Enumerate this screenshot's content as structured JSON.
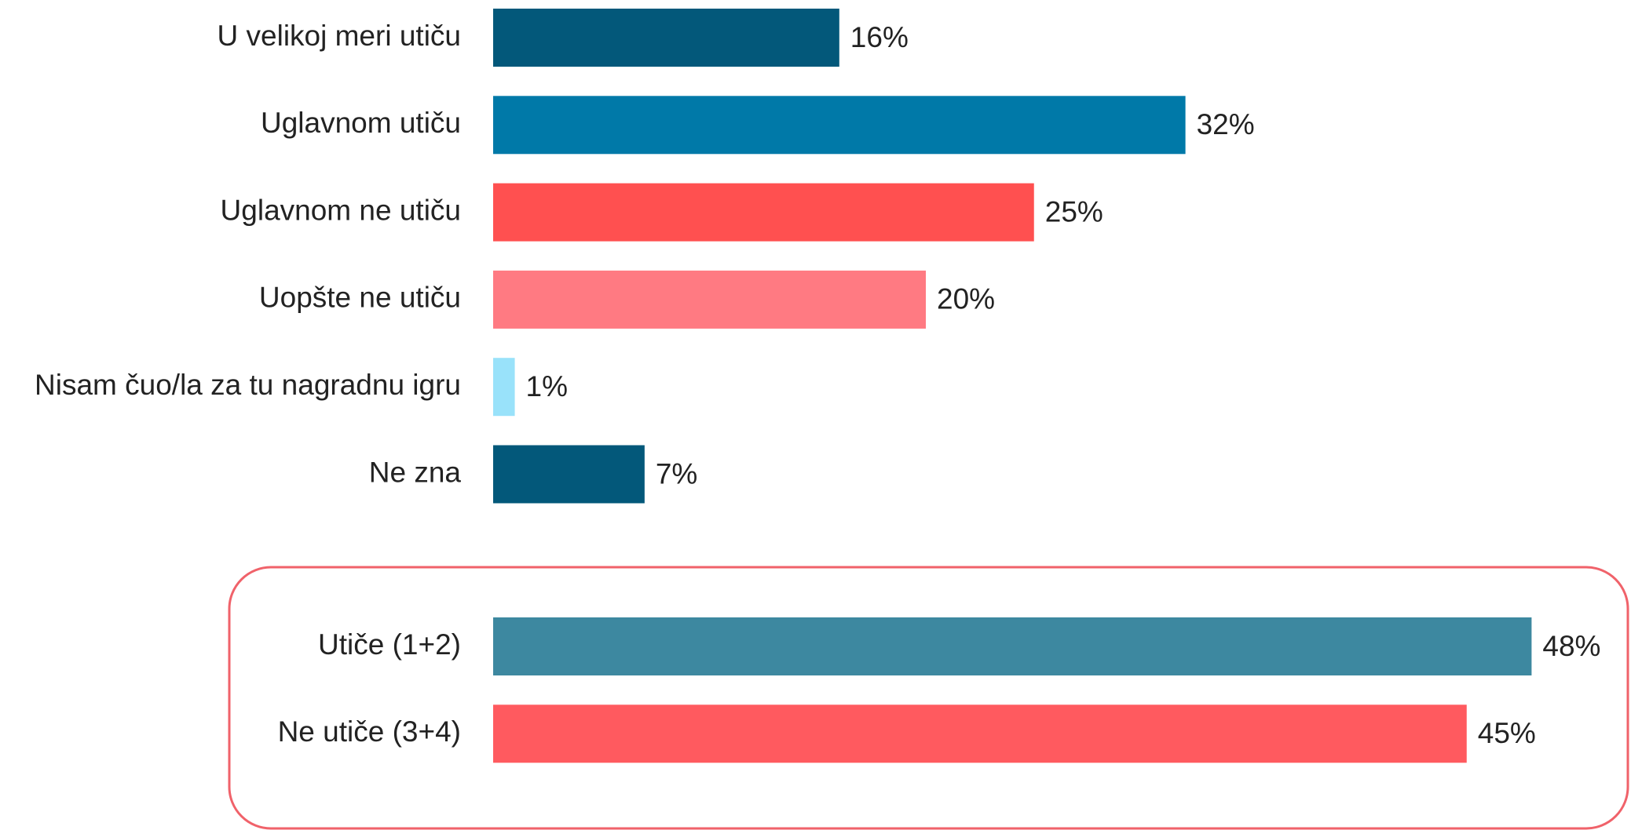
{
  "chart_data": [
    {
      "type": "barh",
      "categories": [
        "U velikoj meri utiču",
        "Uglavnom utiču",
        "Uglavnom ne utiču",
        "Uopšte ne utiču",
        "Nisam čuo/la za tu nagradnu igru",
        "Ne zna"
      ],
      "values": [
        16,
        32,
        25,
        20,
        1,
        7
      ],
      "value_labels": [
        "16%",
        "32%",
        "25%",
        "20%",
        "1%",
        "7%"
      ],
      "colors": [
        "#03587a",
        "#0079a8",
        "#ff5050",
        "#ff7a82",
        "#99e2fa",
        "#03587a"
      ]
    },
    {
      "type": "barh",
      "categories": [
        "Utiče (1+2)",
        "Ne utiče (3+4)"
      ],
      "values": [
        48,
        45
      ],
      "value_labels": [
        "48%",
        "45%"
      ],
      "colors": [
        "#3d88a0",
        "#ff5a5f"
      ]
    }
  ]
}
